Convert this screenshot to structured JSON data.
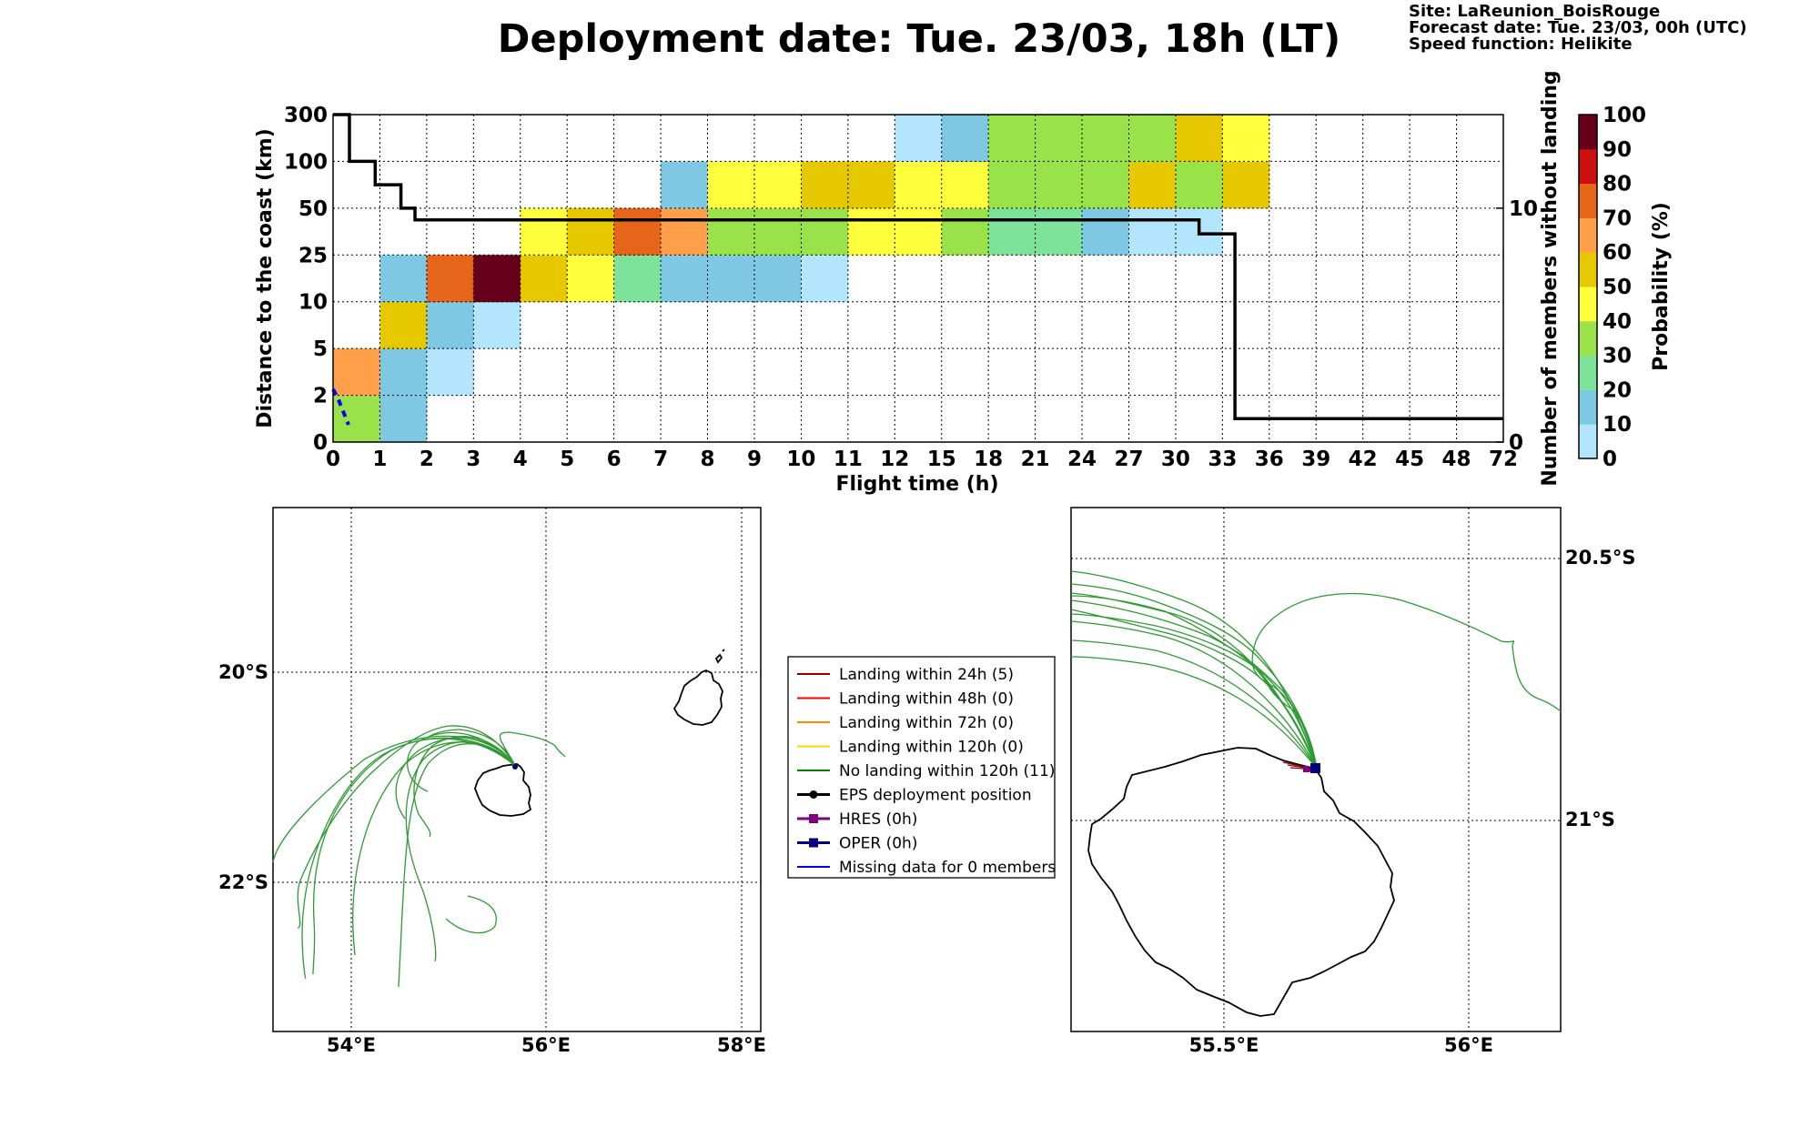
{
  "header": {
    "title": "Deployment date: Tue. 23/03, 18h (LT)",
    "info": [
      "Site: LaReunion_BoisRouge",
      "Forecast date: Tue. 23/03, 00h (UTC)",
      "Speed function: Helikite"
    ]
  },
  "chart_data": [
    {
      "type": "heatmap",
      "xlabel": "Flight time (h)",
      "ylabel": "Distance to the coast (km)",
      "y2label": "Number of members without landing",
      "x_ticks": [
        "0",
        "1",
        "2",
        "3",
        "4",
        "5",
        "6",
        "7",
        "8",
        "9",
        "10",
        "11",
        "12",
        "15",
        "18",
        "21",
        "24",
        "27",
        "30",
        "33",
        "36",
        "39",
        "42",
        "45",
        "48",
        "72"
      ],
      "y_ticks": [
        "0",
        "2",
        "5",
        "10",
        "25",
        "50",
        "100",
        "300"
      ],
      "y2_ticks": [
        "0",
        "10"
      ],
      "y2_range": [
        0,
        14
      ],
      "grid": true,
      "colorbar": {
        "label": "Probability (%)",
        "ticks": [
          "0",
          "10",
          "20",
          "30",
          "40",
          "50",
          "60",
          "70",
          "80",
          "90",
          "100"
        ],
        "colors": [
          "#b3e5fc",
          "#7ec8e3",
          "#7ee39a",
          "#99e24a",
          "#ffff3d",
          "#e5c800",
          "#ff9f4a",
          "#e5661b",
          "#cc0f0f",
          "#66001a"
        ]
      },
      "cells": [
        {
          "x": 0,
          "y": 0,
          "p": 30
        },
        {
          "x": 0,
          "y": 1,
          "p": 60
        },
        {
          "x": 1,
          "y": 0,
          "p": 10
        },
        {
          "x": 1,
          "y": 1,
          "p": 10
        },
        {
          "x": 1,
          "y": 2,
          "p": 50
        },
        {
          "x": 1,
          "y": 3,
          "p": 10
        },
        {
          "x": 2,
          "y": 1,
          "p": 0
        },
        {
          "x": 2,
          "y": 2,
          "p": 10
        },
        {
          "x": 2,
          "y": 3,
          "p": 70
        },
        {
          "x": 3,
          "y": 2,
          "p": 0
        },
        {
          "x": 3,
          "y": 3,
          "p": 90
        },
        {
          "x": 4,
          "y": 3,
          "p": 50
        },
        {
          "x": 4,
          "y": 4,
          "p": 40
        },
        {
          "x": 5,
          "y": 3,
          "p": 40
        },
        {
          "x": 5,
          "y": 4,
          "p": 50
        },
        {
          "x": 6,
          "y": 3,
          "p": 20
        },
        {
          "x": 6,
          "y": 4,
          "p": 70
        },
        {
          "x": 7,
          "y": 3,
          "p": 10
        },
        {
          "x": 7,
          "y": 4,
          "p": 60
        },
        {
          "x": 7,
          "y": 5,
          "p": 10
        },
        {
          "x": 8,
          "y": 3,
          "p": 10
        },
        {
          "x": 8,
          "y": 4,
          "p": 30
        },
        {
          "x": 8,
          "y": 5,
          "p": 40
        },
        {
          "x": 9,
          "y": 3,
          "p": 10
        },
        {
          "x": 9,
          "y": 4,
          "p": 30
        },
        {
          "x": 9,
          "y": 5,
          "p": 40
        },
        {
          "x": 10,
          "y": 3,
          "p": 0
        },
        {
          "x": 10,
          "y": 4,
          "p": 30
        },
        {
          "x": 10,
          "y": 5,
          "p": 50
        },
        {
          "x": 11,
          "y": 4,
          "p": 40
        },
        {
          "x": 11,
          "y": 5,
          "p": 50
        },
        {
          "x": 12,
          "y": 4,
          "p": 40
        },
        {
          "x": 12,
          "y": 5,
          "p": 40
        },
        {
          "x": 12,
          "y": 6,
          "p": 0
        },
        {
          "x": 13,
          "y": 4,
          "p": 30
        },
        {
          "x": 13,
          "y": 5,
          "p": 40
        },
        {
          "x": 13,
          "y": 6,
          "p": 10
        },
        {
          "x": 14,
          "y": 4,
          "p": 20
        },
        {
          "x": 14,
          "y": 5,
          "p": 30
        },
        {
          "x": 14,
          "y": 6,
          "p": 30
        },
        {
          "x": 15,
          "y": 4,
          "p": 20
        },
        {
          "x": 15,
          "y": 5,
          "p": 30
        },
        {
          "x": 15,
          "y": 6,
          "p": 30
        },
        {
          "x": 16,
          "y": 4,
          "p": 10
        },
        {
          "x": 16,
          "y": 5,
          "p": 30
        },
        {
          "x": 16,
          "y": 6,
          "p": 30
        },
        {
          "x": 17,
          "y": 4,
          "p": 0
        },
        {
          "x": 17,
          "y": 5,
          "p": 50
        },
        {
          "x": 17,
          "y": 6,
          "p": 30
        },
        {
          "x": 18,
          "y": 4,
          "p": 0
        },
        {
          "x": 18,
          "y": 5,
          "p": 30
        },
        {
          "x": 18,
          "y": 6,
          "p": 50
        },
        {
          "x": 19,
          "y": 5,
          "p": 50
        },
        {
          "x": 19,
          "y": 6,
          "p": 40
        }
      ],
      "members_without_landing": [
        {
          "x": 0,
          "n": 14
        },
        {
          "x": 0.35,
          "n": 12
        },
        {
          "x": 0.9,
          "n": 11
        },
        {
          "x": 1.45,
          "n": 10
        },
        {
          "x": 1.75,
          "n": 9.5
        },
        {
          "x": 23.5,
          "n": 9.5
        },
        {
          "x": 25.2,
          "n": 9.5
        },
        {
          "x": 29.4,
          "n": 9.5
        },
        {
          "x": 29.4,
          "n": 9.5
        },
        {
          "x": 31.5,
          "n": 9.1
        },
        {
          "x": 31.5,
          "n": 8.9
        },
        {
          "x": 33.5,
          "n": 8.9
        },
        {
          "x": 33.8,
          "n": 1
        },
        {
          "x": 72,
          "n": 1
        }
      ]
    }
  ],
  "maps": {
    "left": {
      "lon_ticks": [
        "54°E",
        "56°E",
        "58°E"
      ],
      "lat_ticks": [
        "20°S",
        "22°S"
      ]
    },
    "right": {
      "lon_ticks": [
        "55.5°E",
        "56°E"
      ],
      "lat_ticks": [
        "20.5°S",
        "21°S"
      ]
    }
  },
  "legend": {
    "items": [
      {
        "label": "Landing within 24h (5)",
        "color": "#8b0000"
      },
      {
        "label": "Landing within 48h (0)",
        "color": "#ff0000"
      },
      {
        "label": "Landing within 72h (0)",
        "color": "#ff8c00"
      },
      {
        "label": "Landing within 120h (0)",
        "color": "#ffd700"
      },
      {
        "label": "No landing within 120h (11)",
        "color": "#008000"
      },
      {
        "label": "EPS deployment position",
        "color": "#000000"
      },
      {
        "label": "HRES (0h)",
        "color": "#800080"
      },
      {
        "label": "OPER (0h)",
        "color": "#000080"
      },
      {
        "label": "Missing data for 0 members",
        "color": "#0000ff"
      }
    ]
  }
}
